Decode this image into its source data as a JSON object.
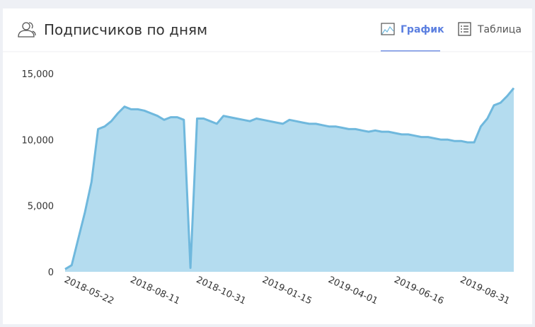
{
  "header": {
    "title": "Подписчиков по дням",
    "tabs": [
      "График",
      "Таблица"
    ]
  },
  "chart_data": {
    "type": "area",
    "color": "#6fb8dd",
    "fill": "#b4dcef",
    "categories": [
      "2018-05-22",
      null,
      null,
      null,
      null,
      null,
      null,
      null,
      null,
      null,
      "2018-08-11",
      null,
      null,
      null,
      null,
      null,
      null,
      null,
      null,
      null,
      "2018-10-31",
      null,
      null,
      null,
      null,
      null,
      null,
      null,
      null,
      null,
      "2019-01-15",
      null,
      null,
      null,
      null,
      null,
      null,
      null,
      null,
      null,
      "2019-04-01",
      null,
      null,
      null,
      null,
      null,
      null,
      null,
      null,
      null,
      "2019-06-16",
      null,
      null,
      null,
      null,
      null,
      null,
      null,
      null,
      null,
      "2019-08-31",
      null,
      null,
      null,
      null,
      null,
      null,
      null,
      null
    ],
    "values": [
      200,
      500,
      2500,
      4500,
      6800,
      10800,
      11000,
      11400,
      12000,
      12500,
      12300,
      12300,
      12200,
      12000,
      11800,
      11500,
      11700,
      11700,
      11500,
      300,
      11600,
      11600,
      11400,
      11200,
      11800,
      11700,
      11600,
      11500,
      11400,
      11600,
      11500,
      11400,
      11300,
      11200,
      11500,
      11400,
      11300,
      11200,
      11200,
      11100,
      11000,
      11000,
      10900,
      10800,
      10800,
      10700,
      10600,
      10700,
      10600,
      10600,
      10500,
      10400,
      10400,
      10300,
      10200,
      10200,
      10100,
      10000,
      10000,
      9900,
      9900,
      9800,
      9800,
      11000,
      11600,
      12600,
      12800,
      13300,
      13900
    ],
    "ylim": [
      0,
      15000
    ],
    "yticks": [
      0,
      {
        "value": 5000,
        "label": "5,000"
      },
      {
        "value": 10000,
        "label": "10,000"
      },
      {
        "value": 15000,
        "label": "15,000"
      }
    ]
  }
}
